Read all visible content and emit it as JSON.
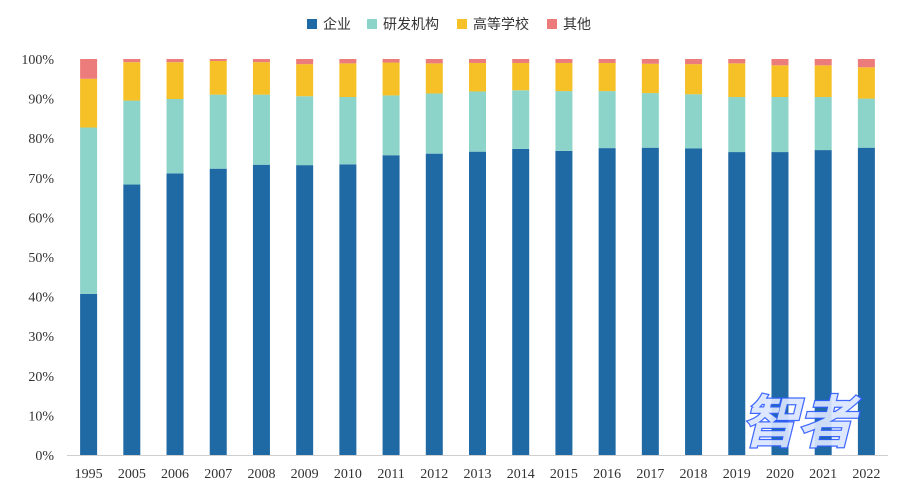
{
  "chart_data": {
    "type": "bar",
    "stacked": true,
    "percent": true,
    "categories": [
      "1995",
      "2005",
      "2006",
      "2007",
      "2008",
      "2009",
      "2010",
      "2011",
      "2012",
      "2013",
      "2014",
      "2015",
      "2016",
      "2017",
      "2018",
      "2019",
      "2020",
      "2021",
      "2022"
    ],
    "series": [
      {
        "name": "企业",
        "color": "#1f6aa5",
        "values": [
          40.7,
          68.3,
          71.1,
          72.3,
          73.3,
          73.2,
          73.4,
          75.7,
          76.1,
          76.6,
          77.3,
          76.8,
          77.5,
          77.6,
          77.4,
          76.5,
          76.5,
          77.0,
          77.6
        ]
      },
      {
        "name": "研发机构",
        "color": "#8cd3c9",
        "values": [
          42.0,
          21.2,
          18.8,
          18.7,
          17.7,
          17.4,
          17.0,
          15.1,
          15.2,
          15.2,
          14.8,
          15.1,
          14.4,
          13.8,
          13.7,
          13.9,
          13.9,
          13.4,
          12.4
        ]
      },
      {
        "name": "高等学校",
        "color": "#f5c127",
        "values": [
          12.3,
          9.7,
          9.3,
          8.5,
          8.2,
          8.1,
          8.5,
          8.3,
          7.6,
          7.2,
          6.9,
          7.1,
          7.1,
          7.4,
          7.6,
          8.5,
          8.0,
          8.0,
          7.9
        ]
      },
      {
        "name": "其他",
        "color": "#ec7c7b",
        "values": [
          5.0,
          0.8,
          0.8,
          0.5,
          0.8,
          1.3,
          1.1,
          0.9,
          1.1,
          1.0,
          1.0,
          1.0,
          1.0,
          1.2,
          1.3,
          1.1,
          1.6,
          1.6,
          2.1
        ]
      }
    ],
    "ylim": [
      0,
      100
    ],
    "yticks": [
      0,
      10,
      20,
      30,
      40,
      50,
      60,
      70,
      80,
      90,
      100
    ],
    "ytick_labels": [
      "0%",
      "10%",
      "20%",
      "30%",
      "40%",
      "50%",
      "60%",
      "70%",
      "80%",
      "90%",
      "100%"
    ],
    "legend_position": "top-center",
    "grid": false,
    "title": "",
    "xlabel": "",
    "ylabel": ""
  },
  "watermark": {
    "text": "智者",
    "color": "#2f5cff"
  }
}
